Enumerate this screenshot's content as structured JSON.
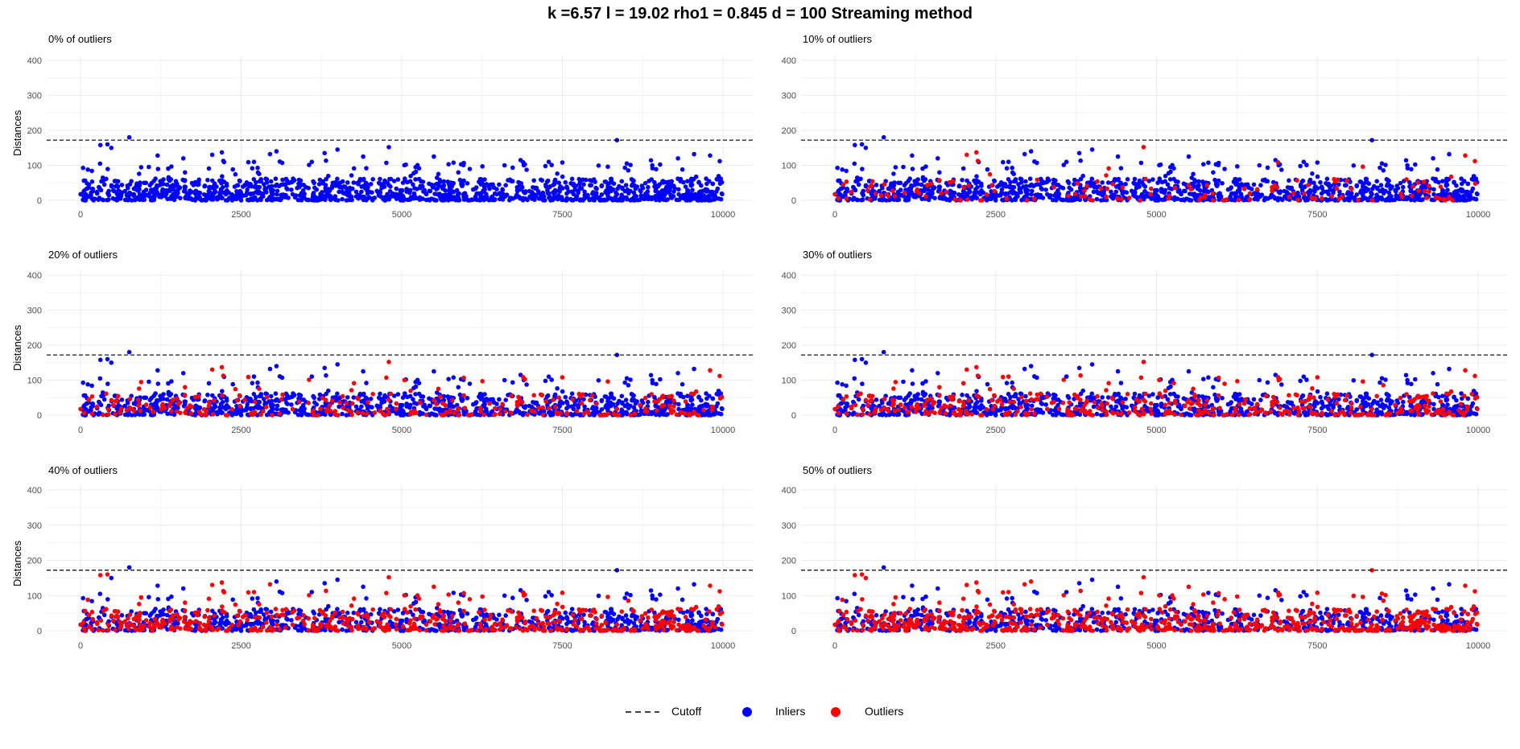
{
  "title": "k =6.57 l = 19.02 rho1 = 0.845 d = 100 Streaming method",
  "ylabel": "Distances",
  "legend": {
    "cutoff": "Cutoff",
    "inliers": "Inliers",
    "outliers": "Outliers"
  },
  "colors": {
    "inliers": "#0000ff",
    "outliers": "#ff0000",
    "cutoff": "#000000",
    "grid": "#ebebeb"
  },
  "chart_data": [
    {
      "type": "scatter",
      "title": "0% of outliers",
      "outlier_fraction": 0.0,
      "xlim": [
        0,
        10000
      ],
      "ylim": [
        0,
        400
      ],
      "xticks": [
        0,
        2500,
        5000,
        7500,
        10000
      ],
      "yticks": [
        0,
        100,
        200,
        300,
        400
      ],
      "cutoff": 172,
      "series": [
        {
          "name": "Inliers"
        },
        {
          "name": "Outliers"
        }
      ]
    },
    {
      "type": "scatter",
      "title": "10% of outliers",
      "outlier_fraction": 0.1,
      "xlim": [
        0,
        10000
      ],
      "ylim": [
        0,
        400
      ],
      "xticks": [
        0,
        2500,
        5000,
        7500,
        10000
      ],
      "yticks": [
        0,
        100,
        200,
        300,
        400
      ],
      "cutoff": 172,
      "series": [
        {
          "name": "Inliers"
        },
        {
          "name": "Outliers"
        }
      ]
    },
    {
      "type": "scatter",
      "title": "20% of outliers",
      "outlier_fraction": 0.2,
      "xlim": [
        0,
        10000
      ],
      "ylim": [
        0,
        400
      ],
      "xticks": [
        0,
        2500,
        5000,
        7500,
        10000
      ],
      "yticks": [
        0,
        100,
        200,
        300,
        400
      ],
      "cutoff": 172,
      "series": [
        {
          "name": "Inliers"
        },
        {
          "name": "Outliers"
        }
      ]
    },
    {
      "type": "scatter",
      "title": "30% of outliers",
      "outlier_fraction": 0.3,
      "xlim": [
        0,
        10000
      ],
      "ylim": [
        0,
        400
      ],
      "xticks": [
        0,
        2500,
        5000,
        7500,
        10000
      ],
      "yticks": [
        0,
        100,
        200,
        300,
        400
      ],
      "cutoff": 172,
      "series": [
        {
          "name": "Inliers"
        },
        {
          "name": "Outliers"
        }
      ]
    },
    {
      "type": "scatter",
      "title": "40% of outliers",
      "outlier_fraction": 0.4,
      "xlim": [
        0,
        10000
      ],
      "ylim": [
        0,
        400
      ],
      "xticks": [
        0,
        2500,
        5000,
        7500,
        10000
      ],
      "yticks": [
        0,
        100,
        200,
        300,
        400
      ],
      "cutoff": 172,
      "series": [
        {
          "name": "Inliers"
        },
        {
          "name": "Outliers"
        }
      ]
    },
    {
      "type": "scatter",
      "title": "50% of outliers",
      "outlier_fraction": 0.5,
      "xlim": [
        0,
        10000
      ],
      "ylim": [
        0,
        400
      ],
      "xticks": [
        0,
        2500,
        5000,
        7500,
        10000
      ],
      "yticks": [
        0,
        100,
        200,
        300,
        400
      ],
      "cutoff": 172,
      "series": [
        {
          "name": "Inliers"
        },
        {
          "name": "Outliers"
        }
      ]
    }
  ],
  "high_points": [
    [
      310,
      158
    ],
    [
      420,
      160
    ],
    [
      480,
      150
    ],
    [
      760,
      180
    ],
    [
      1200,
      128
    ],
    [
      1600,
      120
    ],
    [
      2050,
      130
    ],
    [
      2200,
      137
    ],
    [
      2700,
      110
    ],
    [
      2950,
      132
    ],
    [
      3050,
      140
    ],
    [
      3600,
      110
    ],
    [
      3800,
      135
    ],
    [
      4000,
      145
    ],
    [
      4400,
      125
    ],
    [
      4800,
      152
    ],
    [
      5500,
      125
    ],
    [
      6600,
      100
    ],
    [
      6850,
      115
    ],
    [
      7500,
      108
    ],
    [
      8350,
      172
    ],
    [
      8900,
      100
    ],
    [
      9300,
      120
    ],
    [
      9550,
      132
    ],
    [
      9800,
      128
    ],
    [
      9950,
      112
    ]
  ]
}
